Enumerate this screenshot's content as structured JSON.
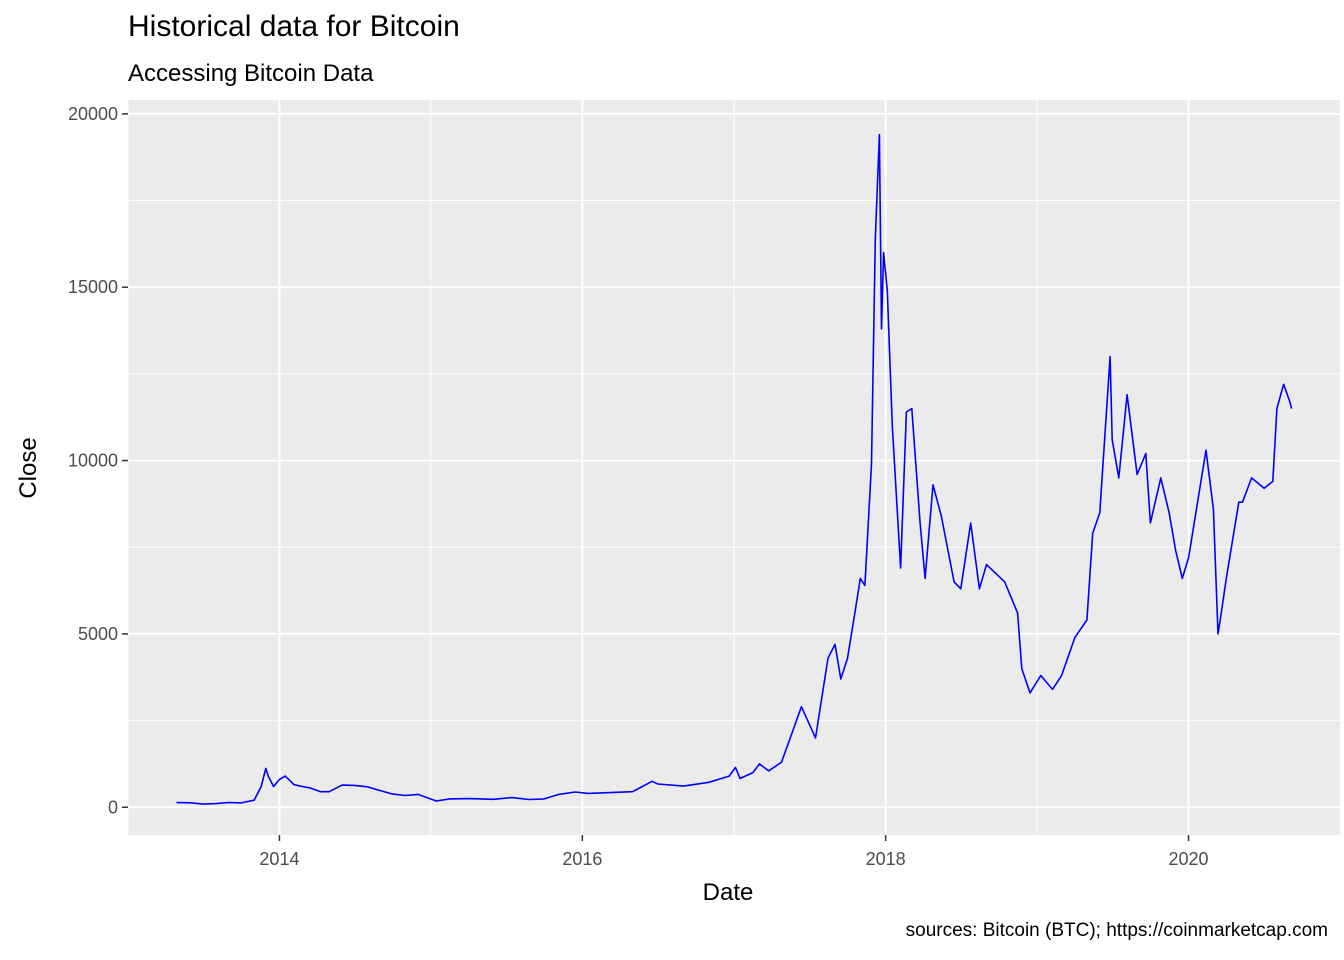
{
  "chart_data": {
    "type": "line",
    "title": "Historical data for Bitcoin",
    "subtitle": "Accessing Bitcoin Data",
    "xlabel": "Date",
    "ylabel": "Close",
    "caption": "sources: Bitcoin (BTC); https://coinmarketcap.com",
    "x_axis": "date",
    "xlim": [
      "2013-01-01",
      "2020-12-31"
    ],
    "ylim": [
      -800,
      20400
    ],
    "x_ticks": [
      "2014",
      "2016",
      "2018",
      "2020"
    ],
    "y_ticks": [
      "0",
      "5000",
      "10000",
      "15000",
      "20000"
    ],
    "grid": true,
    "line_color": "#0000ff",
    "background": "#ebebeb",
    "series": [
      {
        "x": [
          "2013-04-28",
          "2013-06-01",
          "2013-07-01",
          "2013-08-01",
          "2013-09-01",
          "2013-10-01",
          "2013-11-01",
          "2013-11-18",
          "2013-11-29",
          "2013-12-05",
          "2013-12-18",
          "2014-01-01",
          "2014-01-15",
          "2014-02-05",
          "2014-02-25",
          "2014-03-15",
          "2014-04-10",
          "2014-05-01",
          "2014-06-01",
          "2014-07-01",
          "2014-08-01",
          "2014-09-01",
          "2014-10-01",
          "2014-11-01",
          "2014-12-01",
          "2015-01-14",
          "2015-02-15",
          "2015-04-01",
          "2015-06-01",
          "2015-07-15",
          "2015-08-25",
          "2015-10-01",
          "2015-11-05",
          "2015-12-15",
          "2016-01-15",
          "2016-03-01",
          "2016-05-01",
          "2016-06-17",
          "2016-07-01",
          "2016-09-01",
          "2016-11-01",
          "2016-12-20",
          "2017-01-04",
          "2017-01-15",
          "2017-02-15",
          "2017-03-03",
          "2017-03-25",
          "2017-04-25",
          "2017-05-25",
          "2017-06-12",
          "2017-07-16",
          "2017-08-15",
          "2017-09-01",
          "2017-09-15",
          "2017-10-01",
          "2017-10-20",
          "2017-11-01",
          "2017-11-12",
          "2017-11-28",
          "2017-12-07",
          "2017-12-17",
          "2017-12-22",
          "2017-12-27",
          "2018-01-05",
          "2018-01-17",
          "2018-02-06",
          "2018-02-20",
          "2018-03-05",
          "2018-03-25",
          "2018-04-06",
          "2018-04-25",
          "2018-05-15",
          "2018-06-15",
          "2018-07-01",
          "2018-07-25",
          "2018-08-15",
          "2018-09-01",
          "2018-10-15",
          "2018-11-15",
          "2018-11-25",
          "2018-12-15",
          "2019-01-10",
          "2019-02-07",
          "2019-03-01",
          "2019-04-02",
          "2019-05-01",
          "2019-05-15",
          "2019-06-01",
          "2019-06-26",
          "2019-07-01",
          "2019-07-17",
          "2019-08-06",
          "2019-08-30",
          "2019-09-20",
          "2019-10-01",
          "2019-10-26",
          "2019-11-15",
          "2019-12-01",
          "2019-12-17",
          "2020-01-01",
          "2020-02-12",
          "2020-03-01",
          "2020-03-12",
          "2020-03-16",
          "2020-04-01",
          "2020-05-01",
          "2020-05-10",
          "2020-06-01",
          "2020-07-01",
          "2020-07-22",
          "2020-08-01",
          "2020-08-17",
          "2020-09-01",
          "2020-09-05"
        ],
        "values": [
          135,
          129,
          90,
          106,
          138,
          125,
          203,
          600,
          1120,
          900,
          600,
          800,
          900,
          650,
          600,
          560,
          450,
          450,
          640,
          630,
          590,
          480,
          380,
          340,
          370,
          180,
          240,
          250,
          230,
          280,
          225,
          240,
          370,
          440,
          400,
          420,
          450,
          750,
          670,
          610,
          720,
          900,
          1150,
          830,
          1000,
          1250,
          1050,
          1300,
          2300,
          2900,
          2000,
          4300,
          4700,
          3700,
          4300,
          5700,
          6600,
          6400,
          9900,
          16400,
          19400,
          13800,
          16000,
          14900,
          11000,
          6900,
          11400,
          11500,
          8200,
          6600,
          9300,
          8400,
          6500,
          6300,
          8200,
          6300,
          7000,
          6500,
          5600,
          4000,
          3300,
          3800,
          3400,
          3800,
          4900,
          5400,
          7900,
          8500,
          13000,
          10600,
          9500,
          11900,
          9600,
          10200,
          8200,
          9500,
          8500,
          7400,
          6600,
          7200,
          10300,
          8600,
          5000,
          5300,
          6600,
          8800,
          8800,
          9500,
          9200,
          9400,
          11500,
          12200,
          11700,
          11500
        ]
      }
    ]
  }
}
